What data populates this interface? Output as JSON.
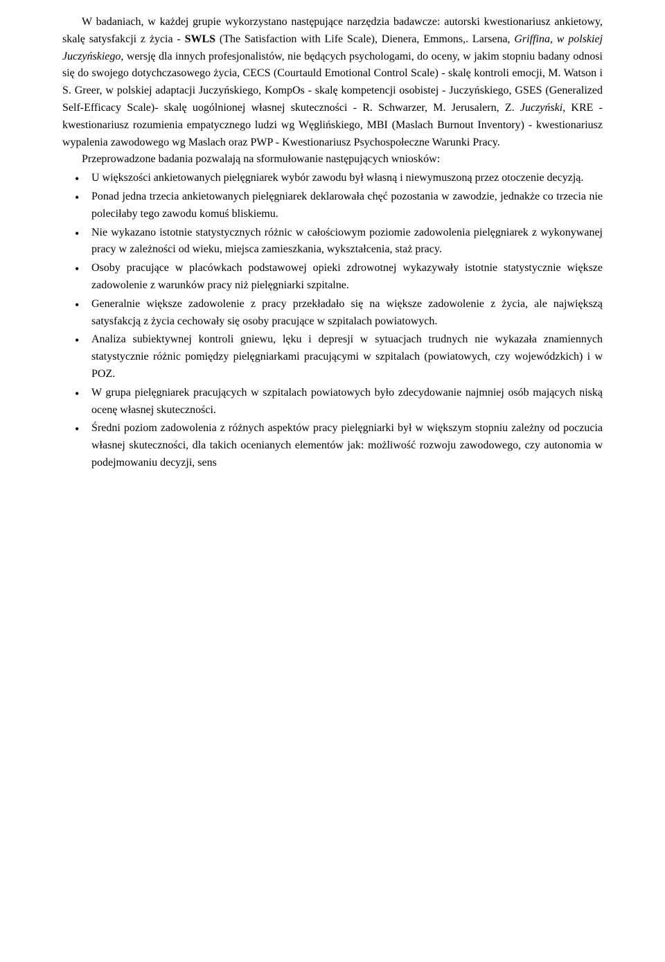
{
  "p1_part1": "W badaniach, w każdej grupie  wykorzystano następujące narzędzia badawcze: autorski kwestionariusz ankietowy, skalę satysfakcji  z życia  - ",
  "p1_swls": "SWLS",
  "p1_part2": " (The Satisfaction with Life Scale), Dienera, Emmons,. Larsena, ",
  "p1_italic1": "Griffina, w polskiej Juczyńskiego",
  "p1_part3": ", wersję dla innych profesjonalistów, nie będących psychologami, do oceny, w jakim stopniu badany odnosi się do swojego dotychczasowego życia, CECS (Courtauld Emotional Control Scale) - skalę kontroli emocji, M. Watson i S. Greer, w polskiej adaptacji  Juczyńskiego, KompOs  - skalę kompetencji osobistej - Juczyńskiego, GSES (Generalized Self-Efficacy Scale)- skalę uogólnionej własnej skuteczności -  R. Schwarzer, M. Jerusalern,  Z.  ",
  "p1_italic2": "Juczyński",
  "p1_part4": ", KRE - kwestionariusz rozumienia empatycznego ludzi wg Węglińskiego, MBI (Maslach Burnout Inventory) - kwestionariusz wypalenia zawodowego wg Maslach  oraz PWP - Kwestionariusz Psychospołeczne Warunki Pracy.",
  "p2": "Przeprowadzone badania pozwalają na sformułowanie następujących wniosków:",
  "bullets": [
    "U większości ankietowanych pielęgniarek wybór zawodu był  własną i niewymuszoną przez otoczenie decyzją.",
    "Ponad jedna trzecia ankietowanych pielęgniarek deklarowała chęć pozostania w zawodzie, jednakże  co trzecia nie poleciłaby tego zawodu komuś bliskiemu.",
    "Nie wykazano istotnie statystycznych różnic w całościowym poziomie zadowolenia pielęgniarek z wykonywanej pracy w zależności od wieku, miejsca zamieszkania, wykształcenia, staż pracy.",
    "Osoby pracujące w placówkach podstawowej opieki zdrowotnej wykazywały istotnie statystycznie większe zadowolenie z warunków pracy niż pielęgniarki szpitalne.",
    "Generalnie większe zadowolenie z pracy przekładało się na większe zadowolenie z życia, ale największą satysfakcją z życia cechowały się osoby pracujące w szpitalach powiatowych.",
    "Analiza subiektywnej kontroli gniewu, lęku i depresji w sytuacjach trudnych nie wykazała  znamiennych statystycznie różnic pomiędzy pielęgniarkami pracującymi w szpitalach (powiatowych, czy wojewódzkich) i w POZ.",
    "W grupa pielęgniarek pracujących w szpitalach powiatowych było zdecydowanie najmniej osób mających niską ocenę własnej skuteczności.",
    "Średni poziom zadowolenia z różnych aspektów pracy pielęgniarki był w większym stopniu zależny od poczucia własnej skuteczności, dla takich ocenianych elementów jak: możliwość rozwoju zawodowego, czy autonomia w podejmowaniu decyzji, sens"
  ]
}
